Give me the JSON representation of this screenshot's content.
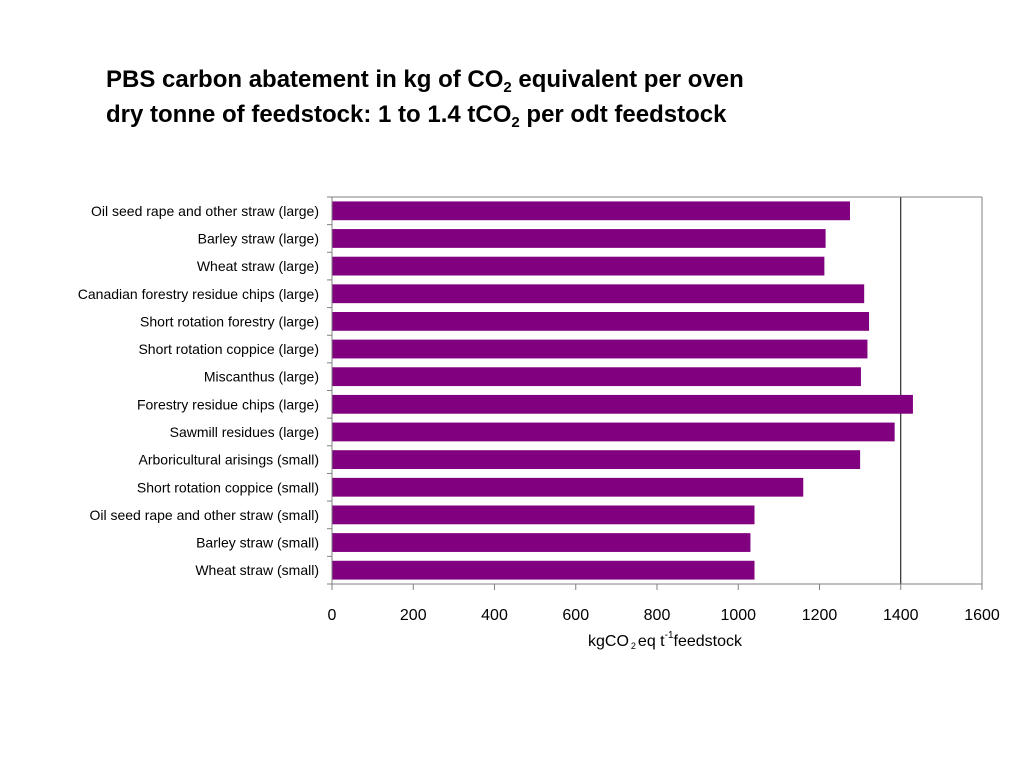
{
  "title": {
    "line1_a": "PBS carbon abatement in kg of CO",
    "line1_sub": "2",
    "line1_b": " equivalent per oven",
    "line2_a": "dry tonne of feedstock:  1 to 1.4 tCO",
    "line2_sub": "2",
    "line2_b": " per odt feedstock"
  },
  "xlabel": {
    "a": "kgCO",
    "sub": "2",
    "b": "eq t",
    "sup": "-1",
    "c": "feedstock"
  },
  "colors": {
    "bar": "#800080",
    "axis": "#808080",
    "grid": "#000000"
  },
  "chart_data": {
    "type": "bar",
    "orientation": "horizontal",
    "categories": [
      "Oil seed rape and other straw (large)",
      "Barley straw (large)",
      "Wheat straw (large)",
      "Canadian forestry residue chips (large)",
      "Short rotation forestry (large)",
      "Short rotation coppice (large)",
      "Miscanthus (large)",
      "Forestry residue chips (large)",
      "Sawmill residues (large)",
      "Arboricultural arisings (small)",
      "Short rotation coppice (small)",
      "Oil seed rape and other straw (small)",
      "Barley straw (small)",
      "Wheat straw (small)"
    ],
    "values": [
      1275,
      1215,
      1212,
      1310,
      1322,
      1318,
      1302,
      1430,
      1385,
      1300,
      1160,
      1040,
      1030,
      1040
    ],
    "xlim": [
      0,
      1600
    ],
    "xticks": [
      "0",
      "200",
      "400",
      "600",
      "800",
      "1000",
      "1200",
      "1400",
      "1600"
    ],
    "gridlines_x": [
      1400
    ],
    "legend": "none"
  }
}
